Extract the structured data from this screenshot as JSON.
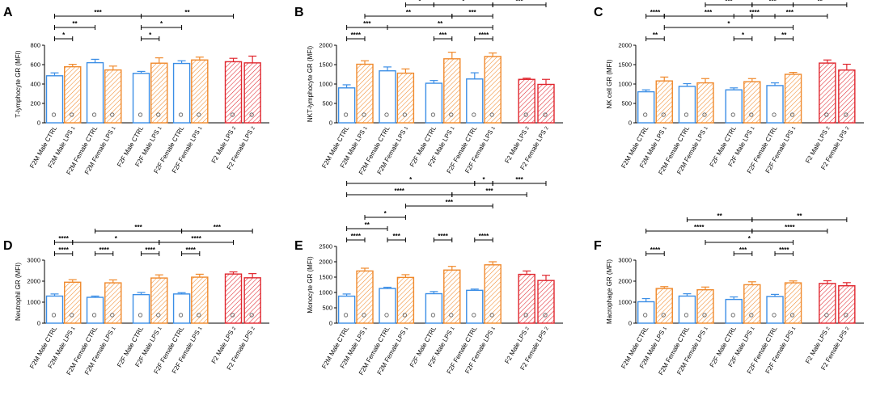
{
  "figure": {
    "colors": {
      "ctrl": "#3b8ee6",
      "lps1": "#f0892b",
      "lps2": "#e0262e",
      "axis": "#000000"
    },
    "icons": [
      "cell-image-icon"
    ]
  },
  "chart_data": [
    {
      "letter": "A",
      "type": "bar",
      "ylabel": "T-lymphocyte GR (MFI)",
      "ylim": [
        0,
        800
      ],
      "yticks": [
        "0",
        "200",
        "400",
        "600",
        "800"
      ],
      "bars": [
        {
          "label": "F2M Male CTRL",
          "sub": "",
          "value": 485,
          "err": 30,
          "group": "ctrl"
        },
        {
          "label": "F2M Male LPS",
          "sub": "1",
          "value": 578,
          "err": 25,
          "group": "lps1"
        },
        {
          "label": "F2M Female CTRL",
          "sub": "",
          "value": 620,
          "err": 35,
          "group": "ctrl"
        },
        {
          "label": "F2M Female LPS",
          "sub": "1",
          "value": 545,
          "err": 40,
          "group": "lps1"
        },
        {
          "label": "F2F Male CTRL",
          "sub": "",
          "value": 510,
          "err": 20,
          "group": "ctrl"
        },
        {
          "label": "F2F Male LPS",
          "sub": "1",
          "value": 615,
          "err": 55,
          "group": "lps1"
        },
        {
          "label": "F2F Female CTRL",
          "sub": "",
          "value": 612,
          "err": 28,
          "group": "ctrl"
        },
        {
          "label": "F2F Female LPS",
          "sub": "1",
          "value": 648,
          "err": 30,
          "group": "lps1"
        },
        {
          "label": "F2 Male LPS",
          "sub": "2",
          "value": 630,
          "err": 35,
          "group": "lps2"
        },
        {
          "label": "F2 Female LPS",
          "sub": "2",
          "value": 618,
          "err": 70,
          "group": "lps2"
        }
      ],
      "significance": [
        {
          "from": 0,
          "to": 1,
          "stars": "*",
          "level": 1
        },
        {
          "from": 0,
          "to": 2,
          "stars": "**",
          "level": 2
        },
        {
          "from": 0,
          "to": 4,
          "stars": "***",
          "level": 3
        },
        {
          "from": 4,
          "to": 5,
          "stars": "*",
          "level": 1
        },
        {
          "from": 4,
          "to": 6,
          "stars": "*",
          "level": 2
        },
        {
          "from": 4,
          "to": 8,
          "stars": "**",
          "level": 3
        }
      ]
    },
    {
      "letter": "B",
      "type": "bar",
      "ylabel": "NKT-lymphocyte GR (MFI)",
      "ylim": [
        0,
        2000
      ],
      "yticks": [
        "0",
        "500",
        "1000",
        "1500",
        "2000"
      ],
      "bars": [
        {
          "label": "F2M Male CTRL",
          "sub": "",
          "value": 900,
          "err": 80,
          "group": "ctrl"
        },
        {
          "label": "F2M Male LPS",
          "sub": "1",
          "value": 1510,
          "err": 90,
          "group": "lps1"
        },
        {
          "label": "F2M Female CTRL",
          "sub": "",
          "value": 1340,
          "err": 100,
          "group": "ctrl"
        },
        {
          "label": "F2M Female LPS",
          "sub": "1",
          "value": 1280,
          "err": 110,
          "group": "lps1"
        },
        {
          "label": "F2F Male CTRL",
          "sub": "",
          "value": 1020,
          "err": 70,
          "group": "ctrl"
        },
        {
          "label": "F2F Male LPS",
          "sub": "1",
          "value": 1650,
          "err": 170,
          "group": "lps1"
        },
        {
          "label": "F2F Female CTRL",
          "sub": "",
          "value": 1130,
          "err": 160,
          "group": "ctrl"
        },
        {
          "label": "F2F Female LPS",
          "sub": "1",
          "value": 1710,
          "err": 90,
          "group": "lps1"
        },
        {
          "label": "F2 Male LPS",
          "sub": "2",
          "value": 1120,
          "err": 30,
          "group": "lps2"
        },
        {
          "label": "F2 Female LPS",
          "sub": "2",
          "value": 990,
          "err": 130,
          "group": "lps2"
        }
      ],
      "significance": [
        {
          "from": 0,
          "to": 1,
          "stars": "****",
          "level": 1
        },
        {
          "from": 0,
          "to": 2,
          "stars": "***",
          "level": 2
        },
        {
          "from": 4,
          "to": 5,
          "stars": "***",
          "level": 1
        },
        {
          "from": 6,
          "to": 7,
          "stars": "****",
          "level": 1
        },
        {
          "from": 2,
          "to": 7,
          "stars": "**",
          "level": 2
        },
        {
          "from": 1,
          "to": 5,
          "stars": "**",
          "level": 3
        },
        {
          "from": 5,
          "to": 7,
          "stars": "***",
          "level": 3
        },
        {
          "from": 3,
          "to": 4,
          "stars": "*",
          "level": 4
        },
        {
          "from": 4,
          "to": 7,
          "stars": "*",
          "level": 4
        },
        {
          "from": 7,
          "to": 9,
          "stars": "***",
          "level": 4
        }
      ]
    },
    {
      "letter": "C",
      "type": "bar",
      "ylabel": "NK cell GR (MFI)",
      "ylim": [
        0,
        2000
      ],
      "yticks": [
        "0",
        "500",
        "1000",
        "1500",
        "2000"
      ],
      "bars": [
        {
          "label": "F2M Male CTRL",
          "sub": "",
          "value": 800,
          "err": 50,
          "group": "ctrl"
        },
        {
          "label": "F2M Male LPS",
          "sub": "1",
          "value": 1080,
          "err": 100,
          "group": "lps1"
        },
        {
          "label": "F2M Female CTRL",
          "sub": "",
          "value": 940,
          "err": 70,
          "group": "ctrl"
        },
        {
          "label": "F2M Female LPS",
          "sub": "1",
          "value": 1030,
          "err": 110,
          "group": "lps1"
        },
        {
          "label": "F2F Male CTRL",
          "sub": "",
          "value": 850,
          "err": 50,
          "group": "ctrl"
        },
        {
          "label": "F2F Male LPS",
          "sub": "1",
          "value": 1060,
          "err": 80,
          "group": "lps1"
        },
        {
          "label": "F2F Female CTRL",
          "sub": "",
          "value": 960,
          "err": 70,
          "group": "ctrl"
        },
        {
          "label": "F2F Female LPS",
          "sub": "1",
          "value": 1250,
          "err": 50,
          "group": "lps1"
        },
        {
          "label": "F2 Male LPS",
          "sub": "2",
          "value": 1540,
          "err": 80,
          "group": "lps2"
        },
        {
          "label": "F2 Female LPS",
          "sub": "2",
          "value": 1360,
          "err": 150,
          "group": "lps2"
        }
      ],
      "significance": [
        {
          "from": 0,
          "to": 1,
          "stars": "**",
          "level": 1
        },
        {
          "from": 4,
          "to": 5,
          "stars": "*",
          "level": 1
        },
        {
          "from": 6,
          "to": 7,
          "stars": "**",
          "level": 1
        },
        {
          "from": 1,
          "to": 7,
          "stars": "*",
          "level": 2
        },
        {
          "from": 0,
          "to": 1,
          "stars": "****",
          "level": 3
        },
        {
          "from": 1,
          "to": 5,
          "stars": "***",
          "level": 3
        },
        {
          "from": 4,
          "to": 6,
          "stars": "****",
          "level": 3
        },
        {
          "from": 5,
          "to": 8,
          "stars": "***",
          "level": 3
        },
        {
          "from": 3,
          "to": 5,
          "stars": "***",
          "level": 4
        },
        {
          "from": 5,
          "to": 7,
          "stars": "***",
          "level": 4
        },
        {
          "from": 7,
          "to": 9,
          "stars": "**",
          "level": 4
        }
      ]
    },
    {
      "letter": "D",
      "type": "bar",
      "ylabel": "Neutrophil GR (MFI)",
      "ylim": [
        0,
        3000
      ],
      "yticks": [
        "0",
        "1000",
        "2000",
        "3000"
      ],
      "bars": [
        {
          "label": "F2M Male CTRL",
          "sub": "",
          "value": 1290,
          "err": 100,
          "group": "ctrl"
        },
        {
          "label": "F2M Male LPS",
          "sub": "1",
          "value": 1950,
          "err": 120,
          "group": "lps1"
        },
        {
          "label": "F2M Female CTRL",
          "sub": "",
          "value": 1230,
          "err": 60,
          "group": "ctrl"
        },
        {
          "label": "F2M Female LPS",
          "sub": "1",
          "value": 1920,
          "err": 140,
          "group": "lps1"
        },
        {
          "label": "F2F Male CTRL",
          "sub": "",
          "value": 1360,
          "err": 100,
          "group": "ctrl"
        },
        {
          "label": "F2F Male LPS",
          "sub": "1",
          "value": 2150,
          "err": 150,
          "group": "lps1"
        },
        {
          "label": "F2F Female CTRL",
          "sub": "",
          "value": 1390,
          "err": 60,
          "group": "ctrl"
        },
        {
          "label": "F2F Female LPS",
          "sub": "1",
          "value": 2190,
          "err": 140,
          "group": "lps1"
        },
        {
          "label": "F2 Male LPS",
          "sub": "2",
          "value": 2340,
          "err": 100,
          "group": "lps2"
        },
        {
          "label": "F2 Female LPS",
          "sub": "2",
          "value": 2160,
          "err": 200,
          "group": "lps2"
        }
      ],
      "significance": [
        {
          "from": 0,
          "to": 1,
          "stars": "****",
          "level": 1
        },
        {
          "from": 2,
          "to": 3,
          "stars": "****",
          "level": 1
        },
        {
          "from": 4,
          "to": 5,
          "stars": "****",
          "level": 1
        },
        {
          "from": 6,
          "to": 7,
          "stars": "****",
          "level": 1
        },
        {
          "from": 0,
          "to": 1,
          "stars": "****",
          "level": 2
        },
        {
          "from": 1,
          "to": 5,
          "stars": "*",
          "level": 2
        },
        {
          "from": 5,
          "to": 8,
          "stars": "****",
          "level": 2
        },
        {
          "from": 2,
          "to": 6,
          "stars": "***",
          "level": 3
        },
        {
          "from": 6,
          "to": 9,
          "stars": "***",
          "level": 3
        }
      ]
    },
    {
      "letter": "E",
      "type": "bar",
      "ylabel": "Monocyte GR (MFI)",
      "ylim": [
        0,
        2500
      ],
      "yticks": [
        "0",
        "500",
        "1000",
        "1500",
        "2000",
        "2500"
      ],
      "bars": [
        {
          "label": "F2M Male CTRL",
          "sub": "",
          "value": 880,
          "err": 70,
          "group": "ctrl"
        },
        {
          "label": "F2M Male LPS",
          "sub": "1",
          "value": 1700,
          "err": 90,
          "group": "lps1"
        },
        {
          "label": "F2M Female CTRL",
          "sub": "",
          "value": 1130,
          "err": 40,
          "group": "ctrl"
        },
        {
          "label": "F2M Female LPS",
          "sub": "1",
          "value": 1490,
          "err": 90,
          "group": "lps1"
        },
        {
          "label": "F2F Male CTRL",
          "sub": "",
          "value": 960,
          "err": 70,
          "group": "ctrl"
        },
        {
          "label": "F2F Male LPS",
          "sub": "1",
          "value": 1730,
          "err": 120,
          "group": "lps1"
        },
        {
          "label": "F2F Female CTRL",
          "sub": "",
          "value": 1070,
          "err": 40,
          "group": "ctrl"
        },
        {
          "label": "F2F Female LPS",
          "sub": "1",
          "value": 1900,
          "err": 100,
          "group": "lps1"
        },
        {
          "label": "F2 Male LPS",
          "sub": "2",
          "value": 1590,
          "err": 110,
          "group": "lps2"
        },
        {
          "label": "F2 Female LPS",
          "sub": "2",
          "value": 1390,
          "err": 170,
          "group": "lps2"
        }
      ],
      "significance": [
        {
          "from": 0,
          "to": 1,
          "stars": "****",
          "level": 1
        },
        {
          "from": 2,
          "to": 3,
          "stars": "***",
          "level": 1
        },
        {
          "from": 4,
          "to": 5,
          "stars": "****",
          "level": 1
        },
        {
          "from": 6,
          "to": 7,
          "stars": "****",
          "level": 1
        },
        {
          "from": 0,
          "to": 2,
          "stars": "**",
          "level": 2
        },
        {
          "from": 1,
          "to": 3,
          "stars": "*",
          "level": 3
        },
        {
          "from": 3,
          "to": 7,
          "stars": "***",
          "level": 4
        },
        {
          "from": 0,
          "to": 5,
          "stars": "****",
          "level": 5
        },
        {
          "from": 5,
          "to": 8,
          "stars": "***",
          "level": 5
        },
        {
          "from": 0,
          "to": 6,
          "stars": "*",
          "level": 6
        },
        {
          "from": 6,
          "to": 7,
          "stars": "*",
          "level": 6
        },
        {
          "from": 7,
          "to": 9,
          "stars": "***",
          "level": 6
        }
      ]
    },
    {
      "letter": "F",
      "type": "bar",
      "ylabel": "Macrophage GR (MFI)",
      "ylim": [
        0,
        3000
      ],
      "yticks": [
        "0",
        "1000",
        "2000",
        "3000"
      ],
      "bars": [
        {
          "label": "F2M Male CTRL",
          "sub": "",
          "value": 1020,
          "err": 150,
          "group": "ctrl"
        },
        {
          "label": "F2M Male LPS",
          "sub": "1",
          "value": 1650,
          "err": 90,
          "group": "lps1"
        },
        {
          "label": "F2M Female CTRL",
          "sub": "",
          "value": 1290,
          "err": 110,
          "group": "ctrl"
        },
        {
          "label": "F2M Female LPS",
          "sub": "1",
          "value": 1590,
          "err": 130,
          "group": "lps1"
        },
        {
          "label": "F2F Male CTRL",
          "sub": "",
          "value": 1130,
          "err": 120,
          "group": "ctrl"
        },
        {
          "label": "F2F Male LPS",
          "sub": "1",
          "value": 1830,
          "err": 140,
          "group": "lps1"
        },
        {
          "label": "F2F Female CTRL",
          "sub": "",
          "value": 1270,
          "err": 100,
          "group": "ctrl"
        },
        {
          "label": "F2F Female LPS",
          "sub": "1",
          "value": 1920,
          "err": 90,
          "group": "lps1"
        },
        {
          "label": "F2 Male LPS",
          "sub": "2",
          "value": 1890,
          "err": 130,
          "group": "lps2"
        },
        {
          "label": "F2 Female LPS",
          "sub": "2",
          "value": 1780,
          "err": 150,
          "group": "lps2"
        }
      ],
      "significance": [
        {
          "from": 0,
          "to": 1,
          "stars": "****",
          "level": 1
        },
        {
          "from": 4,
          "to": 5,
          "stars": "***",
          "level": 1
        },
        {
          "from": 6,
          "to": 7,
          "stars": "****",
          "level": 1
        },
        {
          "from": 3,
          "to": 7,
          "stars": "*",
          "level": 2
        },
        {
          "from": 0,
          "to": 5,
          "stars": "****",
          "level": 3
        },
        {
          "from": 5,
          "to": 8,
          "stars": "****",
          "level": 3
        },
        {
          "from": 2,
          "to": 5,
          "stars": "**",
          "level": 4
        },
        {
          "from": 5,
          "to": 9,
          "stars": "**",
          "level": 4
        }
      ]
    }
  ]
}
